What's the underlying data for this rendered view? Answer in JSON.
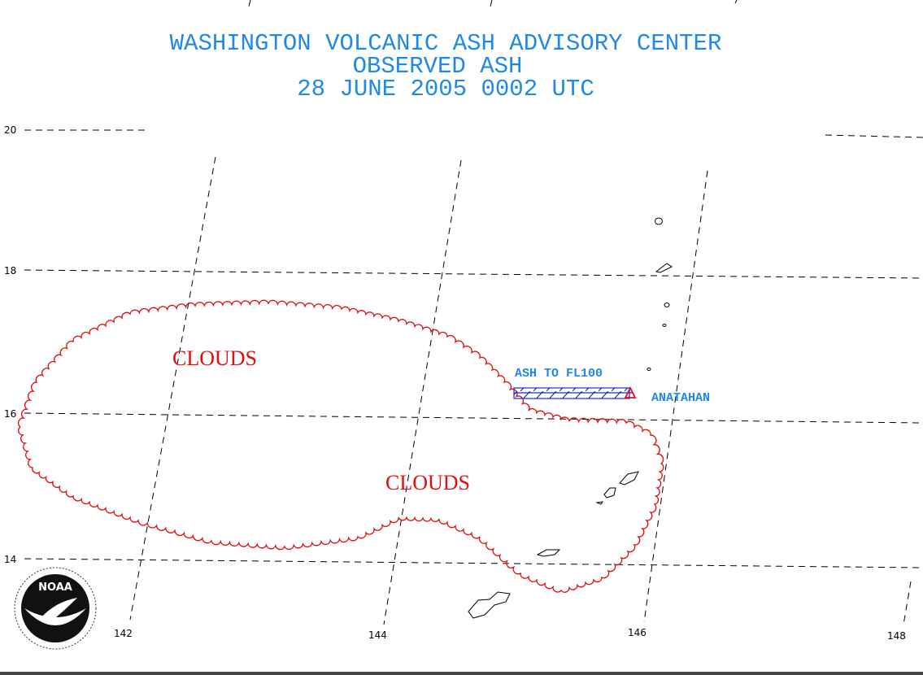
{
  "header": {
    "lines": [
      "WASHINGTON VOLCANIC ASH ADVISORY CENTER",
      "OBSERVED ASH",
      "28 JUNE 2005 0002 UTC"
    ]
  },
  "grid": {
    "latitudes": [
      20,
      18,
      16,
      14
    ],
    "longitudes": [
      142,
      144,
      146,
      148
    ]
  },
  "labels": {
    "clouds": [
      "CLOUDS",
      "CLOUDS"
    ],
    "ash": "ASH TO FL100",
    "volcano": "ANATAHAN"
  },
  "logo": "NOAA"
}
